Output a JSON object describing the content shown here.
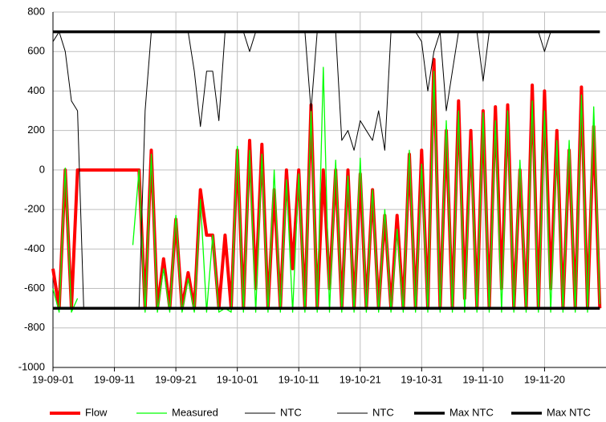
{
  "chart_data": {
    "type": "line",
    "x": [
      "19-09-01",
      "19-09-02",
      "19-09-03",
      "19-09-04",
      "19-09-05",
      "19-09-06",
      "19-09-07",
      "19-09-08",
      "19-09-09",
      "19-09-10",
      "19-09-11",
      "19-09-12",
      "19-09-13",
      "19-09-14",
      "19-09-15",
      "19-09-16",
      "19-09-17",
      "19-09-18",
      "19-09-19",
      "19-09-20",
      "19-09-21",
      "19-09-22",
      "19-09-23",
      "19-09-24",
      "19-09-25",
      "19-09-26",
      "19-09-27",
      "19-09-28",
      "19-09-29",
      "19-09-30",
      "19-10-01",
      "19-10-02",
      "19-10-03",
      "19-10-04",
      "19-10-05",
      "19-10-06",
      "19-10-07",
      "19-10-08",
      "19-10-09",
      "19-10-10",
      "19-10-11",
      "19-10-12",
      "19-10-13",
      "19-10-14",
      "19-10-15",
      "19-10-16",
      "19-10-17",
      "19-10-18",
      "19-10-19",
      "19-10-20",
      "19-10-21",
      "19-10-22",
      "19-10-23",
      "19-10-24",
      "19-10-25",
      "19-10-26",
      "19-10-27",
      "19-10-28",
      "19-10-29",
      "19-10-30",
      "19-10-31",
      "19-11-01",
      "19-11-02",
      "19-11-03",
      "19-11-04",
      "19-11-05",
      "19-11-06",
      "19-11-07",
      "19-11-08",
      "19-11-09",
      "19-11-10",
      "19-11-11",
      "19-11-12",
      "19-11-13",
      "19-11-14",
      "19-11-15",
      "19-11-16",
      "19-11-17",
      "19-11-18",
      "19-11-19",
      "19-11-20",
      "19-11-21",
      "19-11-22",
      "19-11-23",
      "19-11-24",
      "19-11-25",
      "19-11-26",
      "19-11-27",
      "19-11-28",
      "19-11-29"
    ],
    "series": [
      {
        "name": "Flow",
        "color": "#ff0000",
        "width": 4,
        "values": [
          -500,
          -700,
          0,
          -700,
          0,
          0,
          0,
          0,
          0,
          0,
          0,
          0,
          0,
          0,
          0,
          -700,
          100,
          -700,
          -450,
          -700,
          -250,
          -700,
          -520,
          -700,
          -100,
          -330,
          -330,
          -700,
          -330,
          -700,
          100,
          -700,
          150,
          -600,
          130,
          -700,
          -100,
          -700,
          0,
          -500,
          0,
          -700,
          330,
          -700,
          0,
          -600,
          0,
          -700,
          0,
          -700,
          -20,
          -700,
          -100,
          -700,
          -230,
          -700,
          -230,
          -700,
          80,
          -700,
          100,
          -700,
          560,
          -700,
          200,
          -700,
          350,
          -650,
          200,
          -700,
          300,
          -700,
          320,
          -600,
          330,
          -700,
          0,
          -700,
          430,
          -700,
          400,
          -600,
          200,
          -700,
          100,
          -700,
          420,
          -700,
          220,
          -700
        ]
      },
      {
        "name": "Measured",
        "color": "#00ff00",
        "width": 1.3,
        "values": [
          -600,
          -720,
          10,
          -720,
          -650,
          null,
          null,
          null,
          null,
          null,
          null,
          null,
          null,
          -380,
          0,
          -720,
          80,
          -720,
          -500,
          -720,
          -230,
          -720,
          -550,
          -720,
          -150,
          -720,
          -330,
          -720,
          -700,
          -720,
          120,
          -720,
          100,
          -720,
          80,
          -720,
          0,
          -720,
          -50,
          -720,
          -20,
          -720,
          300,
          -720,
          520,
          -720,
          50,
          -720,
          -30,
          -720,
          60,
          -720,
          -100,
          -720,
          -200,
          -720,
          -300,
          -720,
          100,
          -720,
          30,
          -720,
          500,
          -720,
          250,
          -720,
          300,
          -720,
          150,
          -720,
          290,
          -720,
          250,
          -720,
          300,
          -720,
          50,
          -720,
          350,
          -720,
          300,
          -720,
          150,
          -720,
          150,
          -720,
          380,
          -720,
          320,
          -680
        ]
      },
      {
        "name": "NTC",
        "color": "#000000",
        "width": 1,
        "values": [
          650,
          700,
          600,
          350,
          300,
          -700,
          -700,
          -700,
          -700,
          -700,
          -700,
          -700,
          -700,
          -700,
          -700,
          300,
          700,
          700,
          700,
          700,
          700,
          700,
          700,
          500,
          220,
          500,
          500,
          250,
          700,
          700,
          700,
          700,
          600,
          700,
          700,
          700,
          700,
          700,
          700,
          700,
          700,
          700,
          300,
          700,
          700,
          700,
          700,
          150,
          200,
          100,
          250,
          200,
          150,
          300,
          100,
          700,
          700,
          700,
          700,
          700,
          650,
          400,
          600,
          700,
          300,
          500,
          700,
          700,
          700,
          700,
          450,
          700,
          700,
          700,
          700,
          700,
          700,
          700,
          700,
          700,
          600,
          700,
          700,
          700,
          700,
          700,
          700,
          700,
          700,
          700
        ]
      },
      {
        "name": "NTC",
        "color": "#000000",
        "width": 1,
        "values": [
          -700,
          -700,
          -700,
          -700,
          -700,
          -700,
          -700,
          -700,
          -700,
          -700,
          -700,
          -700,
          -700,
          -700,
          -700,
          -700,
          -700,
          -700,
          -700,
          -700,
          -700,
          -700,
          -700,
          -700,
          -700,
          -700,
          -700,
          -700,
          -700,
          -700,
          -700,
          -700,
          -700,
          -700,
          -700,
          -700,
          -700,
          -700,
          -700,
          -700,
          -700,
          -700,
          -700,
          -700,
          -700,
          -700,
          -700,
          -700,
          -700,
          -700,
          -700,
          -700,
          -700,
          -700,
          -700,
          -700,
          -700,
          -700,
          -700,
          -700,
          -700,
          -700,
          -700,
          -700,
          -700,
          -700,
          -700,
          -700,
          -700,
          -700,
          -700,
          -700,
          -700,
          -700,
          -700,
          -700,
          -700,
          -700,
          -700,
          -700,
          -700,
          -700,
          -700,
          -700,
          -700,
          -700,
          -700,
          -700,
          -700,
          -700
        ]
      },
      {
        "name": "Max NTC",
        "color": "#000000",
        "width": 3.5,
        "values": [
          700,
          700,
          700,
          700,
          700,
          700,
          700,
          700,
          700,
          700,
          700,
          700,
          700,
          700,
          700,
          700,
          700,
          700,
          700,
          700,
          700,
          700,
          700,
          700,
          700,
          700,
          700,
          700,
          700,
          700,
          700,
          700,
          700,
          700,
          700,
          700,
          700,
          700,
          700,
          700,
          700,
          700,
          700,
          700,
          700,
          700,
          700,
          700,
          700,
          700,
          700,
          700,
          700,
          700,
          700,
          700,
          700,
          700,
          700,
          700,
          700,
          700,
          700,
          700,
          700,
          700,
          700,
          700,
          700,
          700,
          700,
          700,
          700,
          700,
          700,
          700,
          700,
          700,
          700,
          700,
          700,
          700,
          700,
          700,
          700,
          700,
          700,
          700,
          700,
          700
        ]
      },
      {
        "name": "Max NTC",
        "color": "#000000",
        "width": 3.5,
        "values": [
          -700,
          -700,
          -700,
          -700,
          -700,
          -700,
          -700,
          -700,
          -700,
          -700,
          -700,
          -700,
          -700,
          -700,
          -700,
          -700,
          -700,
          -700,
          -700,
          -700,
          -700,
          -700,
          -700,
          -700,
          -700,
          -700,
          -700,
          -700,
          -700,
          -700,
          -700,
          -700,
          -700,
          -700,
          -700,
          -700,
          -700,
          -700,
          -700,
          -700,
          -700,
          -700,
          -700,
          -700,
          -700,
          -700,
          -700,
          -700,
          -700,
          -700,
          -700,
          -700,
          -700,
          -700,
          -700,
          -700,
          -700,
          -700,
          -700,
          -700,
          -700,
          -700,
          -700,
          -700,
          -700,
          -700,
          -700,
          -700,
          -700,
          -700,
          -700,
          -700,
          -700,
          -700,
          -700,
          -700,
          -700,
          -700,
          -700,
          -700,
          -700,
          -700,
          -700,
          -700,
          -700,
          -700,
          -700,
          -700,
          -700,
          -700
        ]
      }
    ],
    "xlim": [
      "19-09-01",
      "19-11-30"
    ],
    "xticks": [
      "19-09-01",
      "19-09-11",
      "19-09-21",
      "19-10-01",
      "19-10-11",
      "19-10-21",
      "19-10-31",
      "19-11-10",
      "19-11-20"
    ],
    "ylim": [
      -1000,
      800
    ],
    "yticks": [
      -1000,
      -800,
      -600,
      -400,
      -200,
      0,
      200,
      400,
      600,
      800
    ],
    "grid": true,
    "legend": "bottom"
  }
}
